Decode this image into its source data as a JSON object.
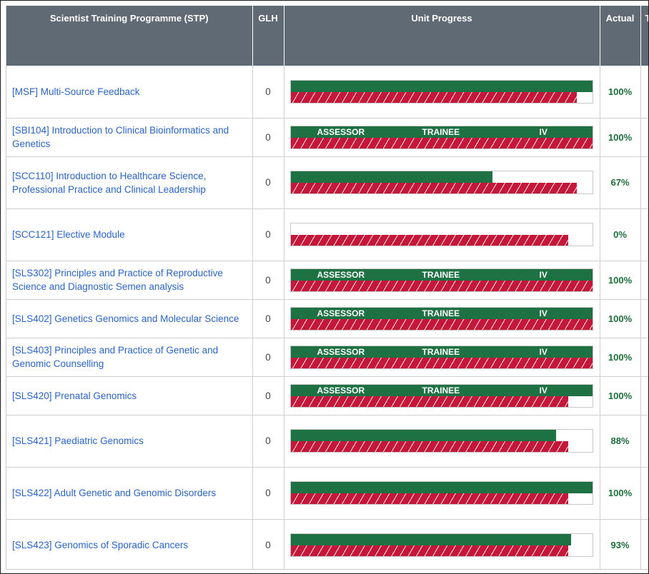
{
  "headers": {
    "unit": "Scientist Training Programme (STP)",
    "glh": "GLH",
    "progress": "Unit Progress",
    "actual": "Actual",
    "extra": "T"
  },
  "bar_labels": {
    "assessor": "ASSESSOR",
    "trainee": "TRAINEE",
    "iv": "IV"
  },
  "colors": {
    "green": "#1d7143",
    "red": "#c5173a",
    "header": "#5f6a74",
    "link": "#2b63c7"
  },
  "rows": [
    {
      "name": "[MSF] Multi-Source Feedback",
      "glh": "0",
      "actual": "100%",
      "green": 1.0,
      "red": 0.95,
      "signed": false
    },
    {
      "name": "[SBI104] Introduction to Clinical Bioinformatics and Genetics",
      "glh": "0",
      "actual": "100%",
      "green": 1.0,
      "red": 1.0,
      "signed": true
    },
    {
      "name": "[SCC110] Introduction to Healthcare Science, Professional Practice and Clinical Leadership",
      "glh": "0",
      "actual": "67%",
      "green": 0.67,
      "red": 0.95,
      "signed": false
    },
    {
      "name": "[SCC121] Elective Module",
      "glh": "0",
      "actual": "0%",
      "green": 0.0,
      "red": 0.92,
      "signed": false
    },
    {
      "name": "[SLS302] Principles and Practice of Reproductive Science and Diagnostic Semen analysis",
      "glh": "0",
      "actual": "100%",
      "green": 1.0,
      "red": 1.0,
      "signed": true
    },
    {
      "name": "[SLS402] Genetics Genomics and Molecular Science",
      "glh": "0",
      "actual": "100%",
      "green": 1.0,
      "red": 1.0,
      "signed": true
    },
    {
      "name": "[SLS403] Principles and Practice of Genetic and Genomic Counselling",
      "glh": "0",
      "actual": "100%",
      "green": 1.0,
      "red": 1.0,
      "signed": true
    },
    {
      "name": "[SLS420] Prenatal Genomics",
      "glh": "0",
      "actual": "100%",
      "green": 1.0,
      "red": 0.92,
      "signed": true
    },
    {
      "name": "[SLS421] Paediatric Genomics",
      "glh": "0",
      "actual": "88%",
      "green": 0.88,
      "red": 0.92,
      "signed": false
    },
    {
      "name": "[SLS422] Adult Genetic and Genomic Disorders",
      "glh": "0",
      "actual": "100%",
      "green": 1.0,
      "red": 0.92,
      "signed": false
    },
    {
      "name": "[SLS423] Genomics of Sporadic Cancers",
      "glh": "0",
      "actual": "93%",
      "green": 0.93,
      "red": 0.92,
      "signed": false
    }
  ]
}
